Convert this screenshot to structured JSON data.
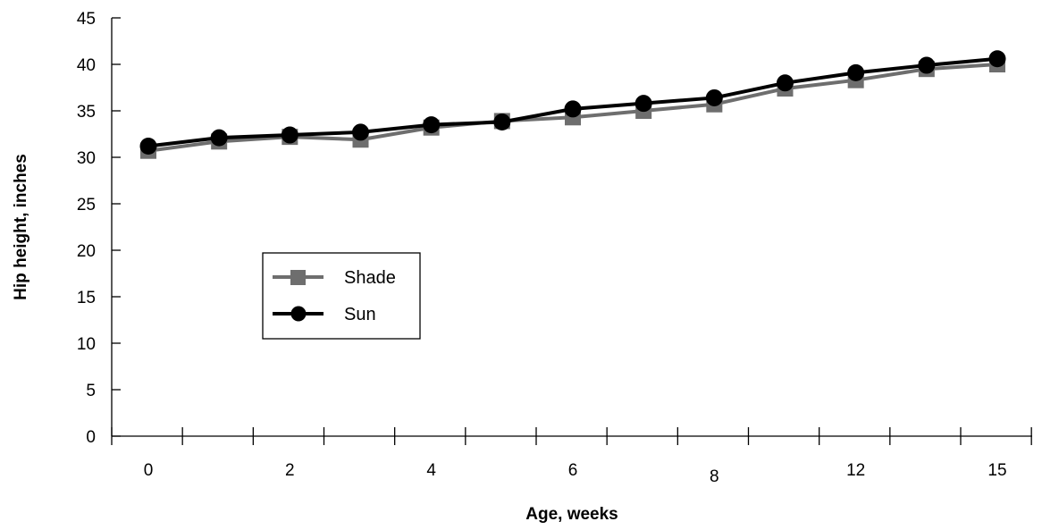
{
  "chart_data": {
    "type": "line",
    "title": "",
    "xlabel": "Age, weeks",
    "ylabel": "Hip height, inches",
    "ylim": [
      0,
      45
    ],
    "yticks": [
      0,
      5,
      10,
      15,
      20,
      25,
      30,
      35,
      40,
      45
    ],
    "x_tick_labels": [
      "0",
      "",
      "2",
      "",
      "4",
      "",
      "6",
      "",
      "8",
      "",
      "12",
      "",
      "15"
    ],
    "grid": false,
    "legend_position": "left-middle",
    "series": [
      {
        "name": "Shade",
        "marker": "square",
        "color": "#6e6e6e",
        "values": [
          30.7,
          31.7,
          32.2,
          31.9,
          33.2,
          33.9,
          34.3,
          35.0,
          35.7,
          37.4,
          38.3,
          39.5,
          40.0
        ]
      },
      {
        "name": "Sun",
        "marker": "circle",
        "color": "#000000",
        "values": [
          31.2,
          32.1,
          32.4,
          32.7,
          33.5,
          33.8,
          35.2,
          35.8,
          36.4,
          38.0,
          39.1,
          39.9,
          40.6
        ]
      }
    ]
  }
}
